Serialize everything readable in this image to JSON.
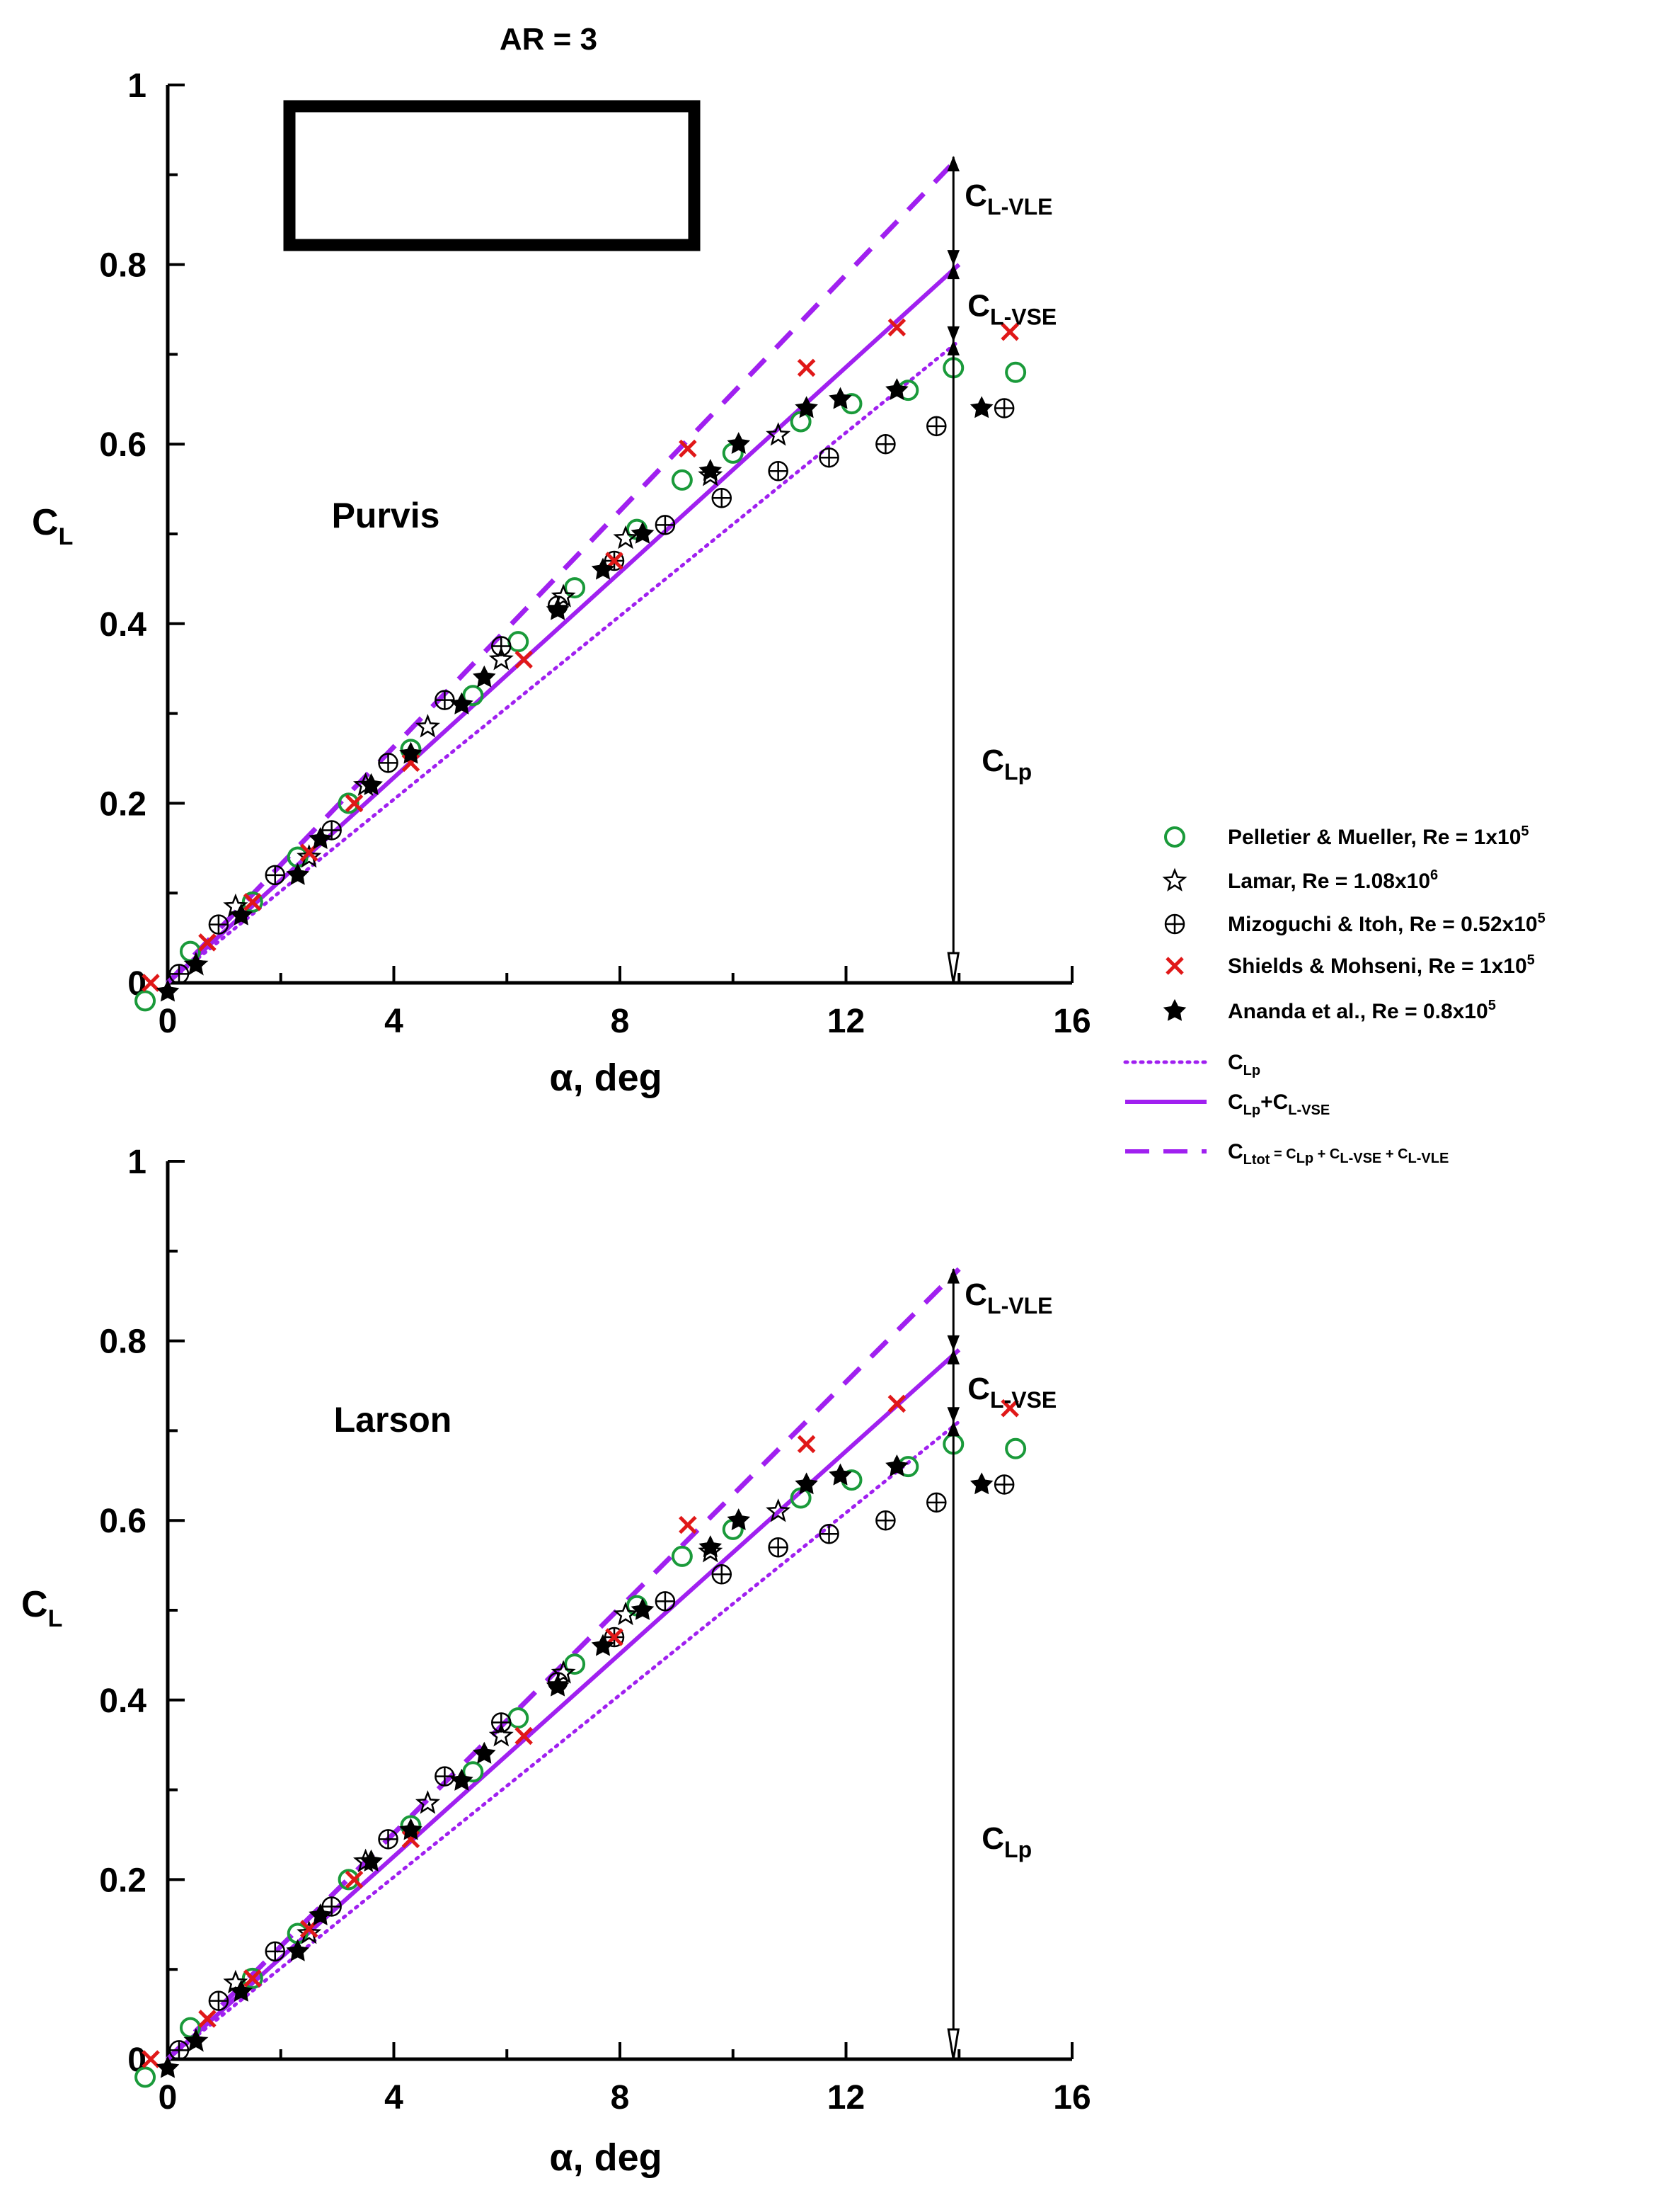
{
  "figure_title": "AR = 3",
  "chart_data": [
    {
      "type": "scatter",
      "panel_label": "Purvis",
      "title": "AR = 3",
      "xlabel": "α, deg",
      "ylabel": "CL",
      "xlim": [
        0,
        16
      ],
      "ylim": [
        0,
        1
      ],
      "xticks": [
        "0",
        "4",
        "8",
        "12",
        "16"
      ],
      "yticks": [
        "0",
        "0.2",
        "0.4",
        "0.6",
        "0.8",
        "1"
      ],
      "wing_planform": "rectangle",
      "series": [
        {
          "name": "Pelletier & Mueller, Re = 1x10^5",
          "marker": "circle",
          "color": "#1a9a3a",
          "x": [
            -0.4,
            0.4,
            1.5,
            2.3,
            3.2,
            4.3,
            5.4,
            6.2,
            7.2,
            8.3,
            9.1,
            10.0,
            11.2,
            12.1,
            13.1,
            13.9,
            15.0
          ],
          "y": [
            -0.02,
            0.035,
            0.09,
            0.14,
            0.2,
            0.26,
            0.32,
            0.38,
            0.44,
            0.505,
            0.56,
            0.59,
            0.625,
            0.645,
            0.66,
            0.685,
            0.68
          ]
        },
        {
          "name": "Lamar, Re = 1.08x10^6",
          "marker": "star-open",
          "color": "#000000",
          "x": [
            0.5,
            1.2,
            2.5,
            3.5,
            4.6,
            5.9,
            7.0,
            8.1,
            9.6,
            10.8
          ],
          "y": [
            0.02,
            0.085,
            0.14,
            0.22,
            0.285,
            0.36,
            0.43,
            0.495,
            0.565,
            0.61
          ]
        },
        {
          "name": "Mizoguchi & Itoh, Re = 0.52x10^5",
          "marker": "circle-plus",
          "color": "#000000",
          "x": [
            0.2,
            0.9,
            1.9,
            2.9,
            3.9,
            4.9,
            5.9,
            6.9,
            7.9,
            8.8,
            9.8,
            10.8,
            11.7,
            12.7,
            13.6,
            14.8
          ],
          "y": [
            0.01,
            0.065,
            0.12,
            0.17,
            0.245,
            0.315,
            0.375,
            0.42,
            0.47,
            0.51,
            0.54,
            0.57,
            0.585,
            0.6,
            0.62,
            0.64
          ]
        },
        {
          "name": "Shields & Mohseni, Re = 1x10^5",
          "marker": "x",
          "color": "#e01818",
          "x": [
            -0.3,
            0.7,
            1.5,
            2.5,
            3.3,
            4.3,
            6.3,
            7.9,
            9.2,
            11.3,
            12.9,
            14.9
          ],
          "y": [
            0.0,
            0.045,
            0.09,
            0.145,
            0.2,
            0.245,
            0.36,
            0.47,
            0.595,
            0.685,
            0.73,
            0.725
          ]
        },
        {
          "name": "Ananda et al., Re = 0.8x10^5",
          "marker": "star-filled",
          "color": "#000000",
          "x": [
            0.0,
            0.5,
            1.3,
            2.3,
            2.7,
            3.6,
            4.3,
            5.2,
            5.6,
            6.9,
            7.7,
            8.4,
            9.6,
            10.1,
            11.3,
            11.9,
            12.9,
            14.4
          ],
          "y": [
            -0.01,
            0.02,
            0.075,
            0.12,
            0.16,
            0.22,
            0.255,
            0.31,
            0.34,
            0.415,
            0.46,
            0.5,
            0.57,
            0.6,
            0.64,
            0.65,
            0.66,
            0.64
          ]
        }
      ],
      "lines": [
        {
          "name": "CLp",
          "style": "dotted",
          "color": "#a020f0",
          "x": [
            0,
            14
          ],
          "y": [
            0,
            0.715
          ]
        },
        {
          "name": "CLp+CL-VSE",
          "style": "solid",
          "color": "#a020f0",
          "x": [
            0,
            14
          ],
          "y": [
            0,
            0.8
          ]
        },
        {
          "name": "CLtot = CLp + CL-VSE + CL-VLE",
          "style": "dashed",
          "color": "#a020f0",
          "x": [
            0,
            14
          ],
          "y": [
            0,
            0.92
          ]
        }
      ],
      "annotations": {
        "alpha": 13.9,
        "vle": {
          "label": "CL-VLE",
          "from": 0.92,
          "to": 0.8
        },
        "vse": {
          "label": "CL-VSE",
          "from": 0.8,
          "to": 0.715
        },
        "p": {
          "label": "CLp",
          "from": 0.715,
          "to": 0.0
        }
      }
    },
    {
      "type": "scatter",
      "panel_label": "Larson",
      "title": "",
      "xlabel": "α, deg",
      "ylabel": "CL",
      "xlim": [
        0,
        16
      ],
      "ylim": [
        0,
        1
      ],
      "xticks": [
        "0",
        "4",
        "8",
        "12",
        "16"
      ],
      "yticks": [
        "0",
        "0.2",
        "0.4",
        "0.6",
        "0.8",
        "1"
      ],
      "series": [
        {
          "name": "Pelletier & Mueller, Re = 1x10^5",
          "marker": "circle",
          "color": "#1a9a3a",
          "x": [
            -0.4,
            0.4,
            1.5,
            2.3,
            3.2,
            4.3,
            5.4,
            6.2,
            7.2,
            8.3,
            9.1,
            10.0,
            11.2,
            12.1,
            13.1,
            13.9,
            15.0
          ],
          "y": [
            -0.02,
            0.035,
            0.09,
            0.14,
            0.2,
            0.26,
            0.32,
            0.38,
            0.44,
            0.505,
            0.56,
            0.59,
            0.625,
            0.645,
            0.66,
            0.685,
            0.68
          ]
        },
        {
          "name": "Lamar, Re = 1.08x10^6",
          "marker": "star-open",
          "color": "#000000",
          "x": [
            0.5,
            1.2,
            2.5,
            3.5,
            4.6,
            5.9,
            7.0,
            8.1,
            9.6,
            10.8
          ],
          "y": [
            0.02,
            0.085,
            0.14,
            0.22,
            0.285,
            0.36,
            0.43,
            0.495,
            0.565,
            0.61
          ]
        },
        {
          "name": "Mizoguchi & Itoh, Re = 0.52x10^5",
          "marker": "circle-plus",
          "color": "#000000",
          "x": [
            0.2,
            0.9,
            1.9,
            2.9,
            3.9,
            4.9,
            5.9,
            6.9,
            7.9,
            8.8,
            9.8,
            10.8,
            11.7,
            12.7,
            13.6,
            14.8
          ],
          "y": [
            0.01,
            0.065,
            0.12,
            0.17,
            0.245,
            0.315,
            0.375,
            0.42,
            0.47,
            0.51,
            0.54,
            0.57,
            0.585,
            0.6,
            0.62,
            0.64
          ]
        },
        {
          "name": "Shields & Mohseni, Re = 1x10^5",
          "marker": "x",
          "color": "#e01818",
          "x": [
            -0.3,
            0.7,
            1.5,
            2.5,
            3.3,
            4.3,
            6.3,
            7.9,
            9.2,
            11.3,
            12.9,
            14.9
          ],
          "y": [
            0.0,
            0.045,
            0.09,
            0.145,
            0.2,
            0.245,
            0.36,
            0.47,
            0.595,
            0.685,
            0.73,
            0.725
          ]
        },
        {
          "name": "Ananda et al., Re = 0.8x10^5",
          "marker": "star-filled",
          "color": "#000000",
          "x": [
            0.0,
            0.5,
            1.3,
            2.3,
            2.7,
            3.6,
            4.3,
            5.2,
            5.6,
            6.9,
            7.7,
            8.4,
            9.6,
            10.1,
            11.3,
            11.9,
            12.9,
            14.4
          ],
          "y": [
            -0.01,
            0.02,
            0.075,
            0.12,
            0.16,
            0.22,
            0.255,
            0.31,
            0.34,
            0.415,
            0.46,
            0.5,
            0.57,
            0.6,
            0.64,
            0.65,
            0.66,
            0.64
          ]
        }
      ],
      "lines": [
        {
          "name": "CLp",
          "style": "dotted",
          "color": "#a020f0",
          "x": [
            0,
            14
          ],
          "y": [
            0,
            0.71
          ]
        },
        {
          "name": "CLp+CL-VSE",
          "style": "solid",
          "color": "#a020f0",
          "x": [
            0,
            14
          ],
          "y": [
            0,
            0.79
          ]
        },
        {
          "name": "CLtot = CLp + CL-VSE + CL-VLE",
          "style": "dashed",
          "color": "#a020f0",
          "x": [
            0,
            14
          ],
          "y": [
            0,
            0.88
          ]
        }
      ],
      "annotations": {
        "alpha": 13.9,
        "vle": {
          "label": "CL-VLE",
          "from": 0.88,
          "to": 0.79
        },
        "vse": {
          "label": "CL-VSE",
          "from": 0.79,
          "to": 0.71
        },
        "p": {
          "label": "CLp",
          "from": 0.71,
          "to": 0.0
        }
      }
    }
  ],
  "legend": {
    "items": [
      {
        "key": "pm",
        "marker": "circle",
        "color": "#1a9a3a",
        "text": "Pelletier & Mueller, Re = 1x10",
        "sup": "5"
      },
      {
        "key": "lamar",
        "marker": "star-open",
        "color": "#000000",
        "text": "Lamar, Re = 1.08x10",
        "sup": "6"
      },
      {
        "key": "mi",
        "marker": "circle-plus",
        "color": "#000000",
        "text": "Mizoguchi & Itoh, Re = 0.52x10",
        "sup": "5"
      },
      {
        "key": "sm",
        "marker": "x",
        "color": "#e01818",
        "text": "Shields & Mohseni, Re = 1x10",
        "sup": "5"
      },
      {
        "key": "an",
        "marker": "star-filled",
        "color": "#000000",
        "text": "Ananda et al., Re = 0.8x10",
        "sup": "5"
      },
      {
        "key": "clp",
        "line": "dotted",
        "color": "#a020f0",
        "label": "C",
        "sub": "Lp"
      },
      {
        "key": "clpvse",
        "line": "solid",
        "color": "#a020f0",
        "label": "C",
        "sub": "Lp",
        "plus": "+C",
        "sub2": "L-VSE"
      },
      {
        "key": "cltot",
        "line": "dashed",
        "color": "#a020f0",
        "label": "C",
        "sub": "Ltot",
        "rest": " = C",
        "sub2": "Lp",
        "rest2": " + C",
        "sub3": "L-VSE",
        "rest3": " + C",
        "sub4": "L-VLE"
      }
    ]
  },
  "colors": {
    "purple": "#a020f0",
    "green": "#1a9a3a",
    "red": "#e01818",
    "black": "#000000"
  }
}
